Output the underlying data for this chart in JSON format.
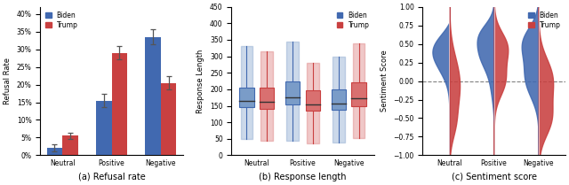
{
  "biden_color": "#4169b0",
  "trump_color": "#c94040",
  "biden_color_light": "#7a9cc8",
  "trump_color_light": "#d97070",
  "categories": [
    "Neutral",
    "Positive",
    "Negative"
  ],
  "refusal_biden": [
    0.02,
    0.155,
    0.335
  ],
  "refusal_trump": [
    0.055,
    0.29,
    0.205
  ],
  "refusal_biden_err": [
    0.01,
    0.02,
    0.022
  ],
  "refusal_trump_err": [
    0.008,
    0.018,
    0.018
  ],
  "box_neutral_biden": {
    "q1": 145,
    "median": 165,
    "q3": 205,
    "whislo": 50,
    "whishi": 330
  },
  "box_neutral_trump": {
    "q1": 140,
    "median": 162,
    "q3": 205,
    "whislo": 45,
    "whishi": 315
  },
  "box_positive_biden": {
    "q1": 155,
    "median": 175,
    "q3": 225,
    "whislo": 45,
    "whishi": 345
  },
  "box_positive_trump": {
    "q1": 135,
    "median": 153,
    "q3": 198,
    "whislo": 35,
    "whishi": 280
  },
  "box_negative_biden": {
    "q1": 138,
    "median": 158,
    "q3": 200,
    "whislo": 40,
    "whishi": 300
  },
  "box_negative_trump": {
    "q1": 148,
    "median": 172,
    "q3": 222,
    "whislo": 52,
    "whishi": 340
  },
  "fig_title_a": "(a) Refusal rate",
  "fig_title_b": "(b) Response length",
  "fig_title_c": "(c) Sentiment score",
  "ylabel_a": "Refusal Rate",
  "ylabel_b": "Response Length",
  "ylabel_c": "Sentiment Score",
  "ylim_b": [
    0,
    450
  ],
  "ylim_c": [
    -1.0,
    1.0
  ]
}
